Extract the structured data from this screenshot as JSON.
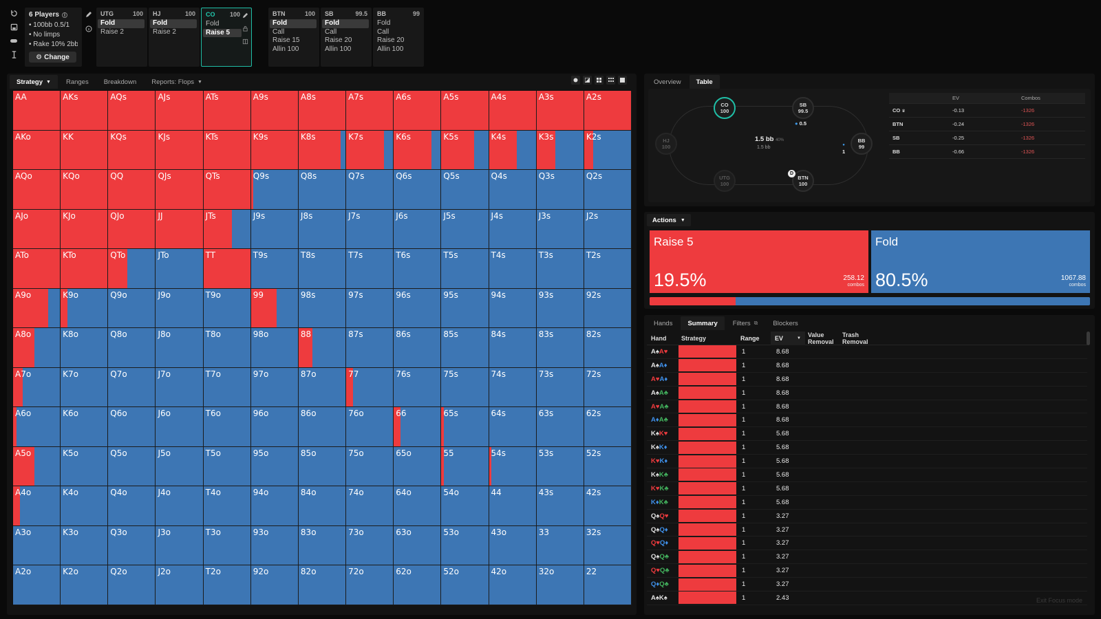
{
  "settings": {
    "players": "6 Players",
    "stakes": "100bb 0.5/1",
    "limps": "No limps",
    "rake": "Rake 10% 2bb",
    "change_label": "Change"
  },
  "seats": [
    {
      "pos": "UTG",
      "stack": "100",
      "actions": [
        "Fold",
        "Raise 2"
      ],
      "selected": 0,
      "active": false
    },
    {
      "pos": "HJ",
      "stack": "100",
      "actions": [
        "Fold",
        "Raise 2"
      ],
      "selected": 0,
      "active": false
    },
    {
      "pos": "CO",
      "stack": "100",
      "actions": [
        "Fold",
        "Raise 5"
      ],
      "selected": 1,
      "active": true
    },
    {
      "pos": "BTN",
      "stack": "100",
      "actions": [
        "Fold",
        "Call",
        "Raise 15",
        "Allin 100"
      ],
      "selected": 0,
      "active": false
    },
    {
      "pos": "SB",
      "stack": "99.5",
      "actions": [
        "Fold",
        "Call",
        "Raise 20",
        "Allin 100"
      ],
      "selected": 0,
      "active": false
    },
    {
      "pos": "BB",
      "stack": "99",
      "actions": [
        "Fold",
        "Call",
        "Raise 20",
        "Allin 100"
      ],
      "selected": -1,
      "active": false
    }
  ],
  "left_tabs": [
    "Strategy",
    "Ranges",
    "Breakdown",
    "Reports: Flops"
  ],
  "colors": {
    "raise": "#ee3b3e",
    "fold": "#3d76b4",
    "accent": "#1fbfa7"
  },
  "grid_ranks": [
    "A",
    "K",
    "Q",
    "J",
    "T",
    "9",
    "8",
    "7",
    "6",
    "5",
    "4",
    "3",
    "2"
  ],
  "grid_raise": [
    [
      100,
      100,
      100,
      100,
      100,
      100,
      100,
      100,
      100,
      100,
      100,
      100,
      100
    ],
    [
      100,
      100,
      100,
      100,
      100,
      100,
      90,
      80,
      80,
      70,
      60,
      40,
      20
    ],
    [
      100,
      100,
      100,
      100,
      100,
      5,
      0,
      0,
      0,
      0,
      0,
      0,
      0
    ],
    [
      100,
      100,
      100,
      100,
      60,
      0,
      0,
      0,
      0,
      0,
      0,
      0,
      0
    ],
    [
      100,
      100,
      40,
      0,
      100,
      0,
      0,
      0,
      0,
      0,
      0,
      0,
      0
    ],
    [
      75,
      15,
      0,
      0,
      0,
      55,
      0,
      0,
      0,
      0,
      0,
      0,
      0
    ],
    [
      45,
      0,
      0,
      0,
      0,
      0,
      30,
      0,
      0,
      0,
      0,
      0,
      0
    ],
    [
      20,
      0,
      0,
      0,
      0,
      0,
      0,
      15,
      0,
      0,
      0,
      0,
      0
    ],
    [
      8,
      0,
      0,
      0,
      0,
      0,
      0,
      0,
      15,
      5,
      0,
      0,
      0
    ],
    [
      45,
      0,
      0,
      0,
      0,
      0,
      0,
      0,
      0,
      5,
      5,
      0,
      0
    ],
    [
      15,
      0,
      0,
      0,
      0,
      0,
      0,
      0,
      0,
      0,
      0,
      0,
      0
    ],
    [
      0,
      0,
      0,
      0,
      0,
      0,
      0,
      0,
      0,
      0,
      0,
      0,
      0
    ],
    [
      0,
      0,
      0,
      0,
      0,
      0,
      0,
      0,
      0,
      0,
      0,
      0,
      0
    ]
  ],
  "right_tabs": [
    "Overview",
    "Table"
  ],
  "table": {
    "seats": [
      {
        "pos": "CO",
        "stack": "100",
        "style": "hero"
      },
      {
        "pos": "SB",
        "stack": "99.5",
        "style": ""
      },
      {
        "pos": "BB",
        "stack": "99",
        "style": ""
      },
      {
        "pos": "BTN",
        "stack": "100",
        "style": ""
      },
      {
        "pos": "UTG",
        "stack": "100",
        "style": "dim"
      },
      {
        "pos": "HJ",
        "stack": "100",
        "style": "dim"
      }
    ],
    "pot": "1.5 bb",
    "pot_pct": "40%",
    "pot_sub": "1.5 bb",
    "sb_bet": "0.5",
    "bb_bet": "1",
    "dealer": "D"
  },
  "ev_table": {
    "headers": [
      "",
      "EV",
      "Combos"
    ],
    "rows": [
      {
        "name": "CO",
        "ev": "-0.13",
        "combos": "-1326"
      },
      {
        "name": "BTN",
        "ev": "-0.24",
        "combos": "-1326"
      },
      {
        "name": "SB",
        "ev": "-0.25",
        "combos": "-1326"
      },
      {
        "name": "BB",
        "ev": "-0.66",
        "combos": "-1326"
      }
    ]
  },
  "actions": {
    "label": "Actions",
    "raise": {
      "name": "Raise 5",
      "pct": "19.5%",
      "combos": "258.12",
      "unit": "combos",
      "fraction": 0.195
    },
    "fold": {
      "name": "Fold",
      "pct": "80.5%",
      "combos": "1067.88",
      "unit": "combos",
      "fraction": 0.805
    }
  },
  "hands_tabs": [
    "Hands",
    "Summary",
    "Filters",
    "Blockers"
  ],
  "hands_headers": {
    "hand": "Hand",
    "strategy": "Strategy",
    "range": "Range",
    "ev": "EV",
    "value": "Value Removal",
    "trash": "Trash Removal"
  },
  "hands": [
    {
      "cards": [
        [
          "A",
          "sp"
        ],
        [
          "A",
          "ht"
        ]
      ],
      "range": "1",
      "ev": "8.68"
    },
    {
      "cards": [
        [
          "A",
          "sp"
        ],
        [
          "A",
          "dm"
        ]
      ],
      "range": "1",
      "ev": "8.68"
    },
    {
      "cards": [
        [
          "A",
          "ht"
        ],
        [
          "A",
          "dm"
        ]
      ],
      "range": "1",
      "ev": "8.68"
    },
    {
      "cards": [
        [
          "A",
          "sp"
        ],
        [
          "A",
          "cl"
        ]
      ],
      "range": "1",
      "ev": "8.68"
    },
    {
      "cards": [
        [
          "A",
          "ht"
        ],
        [
          "A",
          "cl"
        ]
      ],
      "range": "1",
      "ev": "8.68"
    },
    {
      "cards": [
        [
          "A",
          "dm"
        ],
        [
          "A",
          "cl"
        ]
      ],
      "range": "1",
      "ev": "8.68"
    },
    {
      "cards": [
        [
          "K",
          "sp"
        ],
        [
          "K",
          "ht"
        ]
      ],
      "range": "1",
      "ev": "5.68"
    },
    {
      "cards": [
        [
          "K",
          "sp"
        ],
        [
          "K",
          "dm"
        ]
      ],
      "range": "1",
      "ev": "5.68"
    },
    {
      "cards": [
        [
          "K",
          "ht"
        ],
        [
          "K",
          "dm"
        ]
      ],
      "range": "1",
      "ev": "5.68"
    },
    {
      "cards": [
        [
          "K",
          "sp"
        ],
        [
          "K",
          "cl"
        ]
      ],
      "range": "1",
      "ev": "5.68"
    },
    {
      "cards": [
        [
          "K",
          "ht"
        ],
        [
          "K",
          "cl"
        ]
      ],
      "range": "1",
      "ev": "5.68"
    },
    {
      "cards": [
        [
          "K",
          "dm"
        ],
        [
          "K",
          "cl"
        ]
      ],
      "range": "1",
      "ev": "5.68"
    },
    {
      "cards": [
        [
          "Q",
          "sp"
        ],
        [
          "Q",
          "ht"
        ]
      ],
      "range": "1",
      "ev": "3.27"
    },
    {
      "cards": [
        [
          "Q",
          "sp"
        ],
        [
          "Q",
          "dm"
        ]
      ],
      "range": "1",
      "ev": "3.27"
    },
    {
      "cards": [
        [
          "Q",
          "ht"
        ],
        [
          "Q",
          "dm"
        ]
      ],
      "range": "1",
      "ev": "3.27"
    },
    {
      "cards": [
        [
          "Q",
          "sp"
        ],
        [
          "Q",
          "cl"
        ]
      ],
      "range": "1",
      "ev": "3.27"
    },
    {
      "cards": [
        [
          "Q",
          "ht"
        ],
        [
          "Q",
          "cl"
        ]
      ],
      "range": "1",
      "ev": "3.27"
    },
    {
      "cards": [
        [
          "Q",
          "dm"
        ],
        [
          "Q",
          "cl"
        ]
      ],
      "range": "1",
      "ev": "3.27"
    },
    {
      "cards": [
        [
          "A",
          "sp"
        ],
        [
          "K",
          "sp"
        ]
      ],
      "range": "1",
      "ev": "2.43"
    }
  ],
  "exit_focus": "Exit Focus mode"
}
